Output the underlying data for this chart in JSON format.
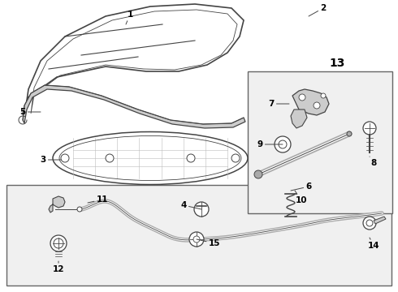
{
  "fig_bg": "#f0f0f0",
  "white": "#ffffff",
  "lc": "#444444",
  "gray": "#aaaaaa",
  "lgray": "#cccccc",
  "dkgray": "#666666",
  "box_bg": "#e8e8e8",
  "label_fs": 7.5,
  "fig_w": 4.9,
  "fig_h": 3.6,
  "dpi": 100
}
